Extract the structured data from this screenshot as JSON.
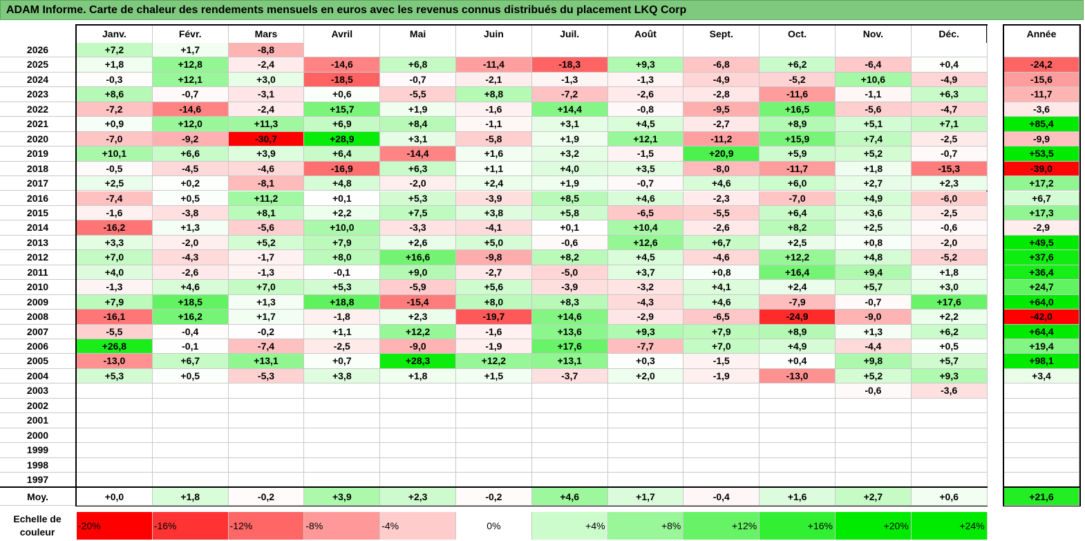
{
  "title": "ADAM Informe. Carte de chaleur des rendements mensuels en euros avec les revenus connus distribués du placement LKQ Corp",
  "chart_data": {
    "type": "heatmap",
    "months": [
      "Janv.",
      "Févr.",
      "Mars",
      "Avril",
      "Mai",
      "Juin",
      "Juil.",
      "Août",
      "Sept.",
      "Oct.",
      "Nov.",
      "Déc."
    ],
    "year_header": "Année",
    "rows": [
      {
        "year": "2026",
        "values": [
          "+7,2",
          "+1,7",
          "-8,8",
          "",
          "",
          "",
          "",
          "",
          "",
          "",
          "",
          ""
        ],
        "annual": ""
      },
      {
        "year": "2025",
        "values": [
          "+1,8",
          "+12,8",
          "-2,4",
          "-14,6",
          "+6,8",
          "-11,4",
          "-18,3",
          "+9,3",
          "-6,8",
          "+6,2",
          "-6,4",
          "+0,4"
        ],
        "annual": "-24,2"
      },
      {
        "year": "2024",
        "values": [
          "-0,3",
          "+12,1",
          "+3,0",
          "-18,5",
          "-0,7",
          "-2,1",
          "-1,3",
          "-1,3",
          "-4,9",
          "-5,2",
          "+10,6",
          "-4,9"
        ],
        "annual": "-15,6"
      },
      {
        "year": "2023",
        "values": [
          "+8,6",
          "-0,7",
          "-3,1",
          "+0,6",
          "-5,5",
          "+8,8",
          "-7,2",
          "-2,6",
          "-2,8",
          "-11,6",
          "-1,1",
          "+6,3"
        ],
        "annual": "-11,7"
      },
      {
        "year": "2022",
        "values": [
          "-7,2",
          "-14,6",
          "-2,4",
          "+15,7",
          "+1,9",
          "-1,6",
          "+14,4",
          "-0,8",
          "-9,5",
          "+16,5",
          "-5,6",
          "-4,7"
        ],
        "annual": "-3,6"
      },
      {
        "year": "2021",
        "values": [
          "+0,9",
          "+12,0",
          "+11,3",
          "+6,9",
          "+8,4",
          "-1,1",
          "+3,1",
          "+4,5",
          "-2,7",
          "+8,9",
          "+5,1",
          "+7,1"
        ],
        "annual": "+85,4"
      },
      {
        "year": "2020",
        "values": [
          "-7,0",
          "-9,2",
          "-30,7",
          "+28,9",
          "+3,1",
          "-5,8",
          "+1,9",
          "+12,1",
          "-11,2",
          "+15,9",
          "+7,4",
          "-2,5"
        ],
        "annual": "-9,9"
      },
      {
        "year": "2019",
        "values": [
          "+10,1",
          "+6,6",
          "+3,9",
          "+6,4",
          "-14,4",
          "+1,6",
          "+3,2",
          "-1,5",
          "+20,9",
          "+5,9",
          "+5,2",
          "-0,7"
        ],
        "annual": "+53,5"
      },
      {
        "year": "2018",
        "values": [
          "-0,5",
          "-4,5",
          "-4,6",
          "-16,9",
          "+6,3",
          "+1,1",
          "+4,0",
          "+3,5",
          "-8,0",
          "-11,7",
          "+1,8",
          "-15,3"
        ],
        "annual": "-39,0"
      },
      {
        "year": "2017",
        "values": [
          "+2,5",
          "+0,2",
          "-8,1",
          "+4,8",
          "-2,0",
          "+2,4",
          "+1,9",
          "-0,7",
          "+4,6",
          "+6,0",
          "+2,7",
          "+2,3"
        ],
        "annual": "+17,2"
      },
      {
        "year": "2016",
        "values": [
          "-7,4",
          "+0,5",
          "+11,2",
          "+0,1",
          "+5,3",
          "-3,9",
          "+8,5",
          "+4,6",
          "-2,3",
          "-7,0",
          "+4,9",
          "-6,0"
        ],
        "annual": "+6,7"
      },
      {
        "year": "2015",
        "values": [
          "-1,6",
          "-3,8",
          "+8,1",
          "+2,2",
          "+7,5",
          "+3,8",
          "+5,8",
          "-6,5",
          "-5,5",
          "+6,4",
          "+3,6",
          "-2,5"
        ],
        "annual": "+17,3"
      },
      {
        "year": "2014",
        "values": [
          "-16,2",
          "+1,3",
          "-5,6",
          "+10,0",
          "-3,3",
          "-4,1",
          "+0,1",
          "+10,4",
          "-2,6",
          "+8,2",
          "+2,5",
          "-0,6"
        ],
        "annual": "-2,9"
      },
      {
        "year": "2013",
        "values": [
          "+3,3",
          "-2,0",
          "+5,2",
          "+7,9",
          "+2,6",
          "+5,0",
          "-0,6",
          "+12,6",
          "+6,7",
          "+2,5",
          "+0,8",
          "-2,0"
        ],
        "annual": "+49,5"
      },
      {
        "year": "2012",
        "values": [
          "+7,0",
          "-4,3",
          "-1,7",
          "+8,0",
          "+16,6",
          "-9,8",
          "+8,2",
          "+4,5",
          "-4,6",
          "+12,2",
          "+4,8",
          "-5,2"
        ],
        "annual": "+37,6"
      },
      {
        "year": "2011",
        "values": [
          "+4,0",
          "-2,6",
          "-1,3",
          "-0,1",
          "+9,0",
          "-2,7",
          "-5,0",
          "+3,7",
          "+0,8",
          "+16,4",
          "+9,4",
          "+1,8"
        ],
        "annual": "+36,4"
      },
      {
        "year": "2010",
        "values": [
          "-1,3",
          "+4,6",
          "+7,0",
          "+5,3",
          "-5,9",
          "+5,6",
          "-3,9",
          "-3,2",
          "+4,1",
          "+2,4",
          "+5,7",
          "+3,0"
        ],
        "annual": "+24,7"
      },
      {
        "year": "2009",
        "values": [
          "+7,9",
          "+18,5",
          "+1,3",
          "+18,8",
          "-15,4",
          "+8,0",
          "+8,3",
          "-4,3",
          "+4,6",
          "-7,9",
          "-0,7",
          "+17,6"
        ],
        "annual": "+64,0"
      },
      {
        "year": "2008",
        "values": [
          "-16,1",
          "+16,2",
          "+1,7",
          "-1,8",
          "+2,3",
          "-19,7",
          "+14,6",
          "-2,9",
          "-6,5",
          "-24,9",
          "-9,0",
          "+2,2"
        ],
        "annual": "-42,0"
      },
      {
        "year": "2007",
        "values": [
          "-5,5",
          "-0,4",
          "-0,2",
          "+1,1",
          "+12,2",
          "-1,6",
          "+13,6",
          "+9,3",
          "+7,9",
          "+8,9",
          "+1,3",
          "+6,2"
        ],
        "annual": "+64,4"
      },
      {
        "year": "2006",
        "values": [
          "+26,8",
          "-0,1",
          "-7,4",
          "-2,5",
          "-9,0",
          "-1,9",
          "+17,6",
          "-7,7",
          "+7,0",
          "+4,9",
          "-4,4",
          "+0,5"
        ],
        "annual": "+19,4"
      },
      {
        "year": "2005",
        "values": [
          "-13,0",
          "+6,7",
          "+13,1",
          "+0,7",
          "+28,3",
          "+12,2",
          "+13,1",
          "+0,3",
          "-1,5",
          "+0,4",
          "+9,8",
          "+5,7"
        ],
        "annual": "+98,1"
      },
      {
        "year": "2004",
        "values": [
          "+5,3",
          "+0,5",
          "-5,3",
          "+3,8",
          "+1,8",
          "+1,5",
          "-3,7",
          "+2,0",
          "-1,9",
          "-13,0",
          "+5,2",
          "+9,3"
        ],
        "annual": "+3,4"
      },
      {
        "year": "2003",
        "values": [
          "",
          "",
          "",
          "",
          "",
          "",
          "",
          "",
          "",
          "",
          "-0,6",
          "-3,6"
        ],
        "annual": ""
      },
      {
        "year": "2002",
        "values": [
          "",
          "",
          "",
          "",
          "",
          "",
          "",
          "",
          "",
          "",
          "",
          ""
        ],
        "annual": ""
      },
      {
        "year": "2001",
        "values": [
          "",
          "",
          "",
          "",
          "",
          "",
          "",
          "",
          "",
          "",
          "",
          ""
        ],
        "annual": ""
      },
      {
        "year": "2000",
        "values": [
          "",
          "",
          "",
          "",
          "",
          "",
          "",
          "",
          "",
          "",
          "",
          ""
        ],
        "annual": ""
      },
      {
        "year": "1999",
        "values": [
          "",
          "",
          "",
          "",
          "",
          "",
          "",
          "",
          "",
          "",
          "",
          ""
        ],
        "annual": ""
      },
      {
        "year": "1998",
        "values": [
          "",
          "",
          "",
          "",
          "",
          "",
          "",
          "",
          "",
          "",
          "",
          ""
        ],
        "annual": ""
      },
      {
        "year": "1997",
        "values": [
          "",
          "",
          "",
          "",
          "",
          "",
          "",
          "",
          "",
          "",
          "",
          ""
        ],
        "annual": ""
      }
    ],
    "average": {
      "label": "Moy.",
      "values": [
        "+0,0",
        "+1,8",
        "-0,2",
        "+3,9",
        "+2,3",
        "-0,2",
        "+4,6",
        "+1,7",
        "-0,4",
        "+1,6",
        "+2,7",
        "+0,6"
      ],
      "annual": "+21,6"
    },
    "legend": {
      "title_line1": "Echelle de",
      "title_line2": "couleur",
      "steps": [
        "-20%",
        "-16%",
        "-12%",
        "-8%",
        "-4%",
        "0%",
        "+4%",
        "+8%",
        "+12%",
        "+16%",
        "+20%",
        "+24%"
      ]
    },
    "colors": {
      "negative_max": "#ff0000",
      "neutral": "#ffffff",
      "positive_max": "#00ee00",
      "title_bg": "#7fc97f"
    }
  }
}
